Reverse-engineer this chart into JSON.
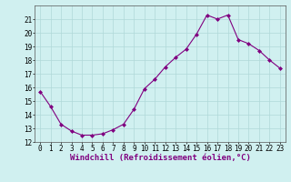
{
  "x": [
    0,
    1,
    2,
    3,
    4,
    5,
    6,
    7,
    8,
    9,
    10,
    11,
    12,
    13,
    14,
    15,
    16,
    17,
    18,
    19,
    20,
    21,
    22,
    23
  ],
  "y": [
    15.7,
    14.6,
    13.3,
    12.8,
    12.5,
    12.5,
    12.6,
    12.9,
    13.3,
    14.4,
    15.9,
    16.6,
    17.5,
    18.2,
    18.8,
    19.9,
    21.3,
    21.0,
    21.3,
    19.5,
    19.2,
    18.7,
    18.0,
    17.4
  ],
  "line_color": "#800080",
  "marker": "D",
  "marker_size": 2.0,
  "bg_color": "#d0f0f0",
  "grid_color": "#b0d8d8",
  "xlabel": "Windchill (Refroidissement éolien,°C)",
  "xlabel_fontsize": 6.5,
  "tick_fontsize": 5.5,
  "ylim": [
    12,
    22
  ],
  "xlim": [
    -0.5,
    23.5
  ],
  "yticks": [
    12,
    13,
    14,
    15,
    16,
    17,
    18,
    19,
    20,
    21
  ],
  "xticks": [
    0,
    1,
    2,
    3,
    4,
    5,
    6,
    7,
    8,
    9,
    10,
    11,
    12,
    13,
    14,
    15,
    16,
    17,
    18,
    19,
    20,
    21,
    22,
    23
  ],
  "spine_color": "#888888",
  "axis_line_color": "#555555"
}
